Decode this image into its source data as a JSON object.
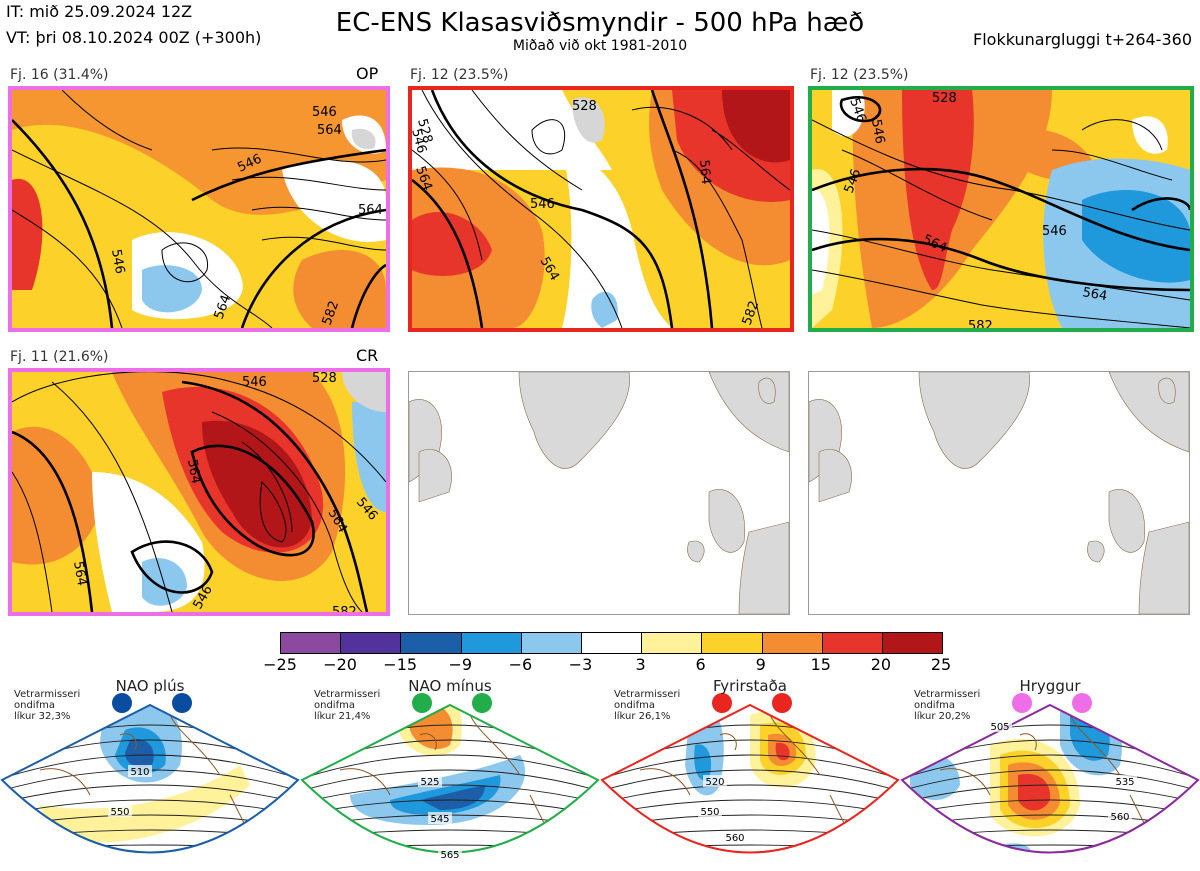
{
  "header": {
    "it_line": "IT: mið 25.09.2024 12Z",
    "vt_line": "VT: þri 08.10.2024 00Z  (+300h)",
    "title": "EC-ENS Klasasviðsmyndir - 500 hPa hæð",
    "subtitle": "Miðað við okt 1981-2010",
    "window": "Flokkunargluggi t+264-360"
  },
  "panels": [
    {
      "label": "Fj. 16 (31.4%)",
      "tag": "OP",
      "frame_color": "#ee6ee8",
      "contours": [
        "546",
        "546",
        "546",
        "564",
        "564",
        "564",
        "582"
      ]
    },
    {
      "label": "Fj. 12 (23.5%)",
      "tag": "",
      "frame_color": "#e8251e",
      "contours": [
        "528",
        "528",
        "546",
        "546",
        "564",
        "564",
        "564",
        "582"
      ]
    },
    {
      "label": "Fj. 12 (23.5%)",
      "tag": "",
      "frame_color": "#21ad4a",
      "contours": [
        "546",
        "528",
        "546",
        "546",
        "564",
        "564",
        "546",
        "582"
      ]
    },
    {
      "label": "Fj. 11 (21.6%)",
      "tag": "CR",
      "frame_color": "#ee6ee8",
      "contours": [
        "546",
        "528",
        "564",
        "564",
        "546",
        "546",
        "564",
        "582"
      ]
    }
  ],
  "colorbar": {
    "colors": [
      "#8b4aa0",
      "#52339b",
      "#1c5fa8",
      "#1f98dc",
      "#8cc7ee",
      "#ffffff",
      "#fff29a",
      "#fcd22a",
      "#f48c32",
      "#e8352b",
      "#b31618"
    ],
    "ticks": [
      "−25",
      "−20",
      "−15",
      "−9",
      "−6",
      "−3",
      "3",
      "6",
      "9",
      "15",
      "20",
      "25"
    ]
  },
  "regimes": [
    {
      "name": "NAO plús",
      "info": [
        "Vetrarmisseri",
        "ondifma",
        "líkur 32,3%"
      ],
      "color": "#1c5fa8",
      "dot_color": "#0a4da0",
      "contours": [
        "510",
        "550"
      ]
    },
    {
      "name": "NAO mínus",
      "info": [
        "Vetrarmisseri",
        "ondifma",
        "líkur 21,4%"
      ],
      "color": "#21ad4a",
      "dot_color": "#21ad4a",
      "contours": [
        "525",
        "545",
        "565"
      ]
    },
    {
      "name": "Fyrirstaða",
      "info": [
        "Vetrarmisseri",
        "ondifma",
        "líkur 26,1%"
      ],
      "color": "#e8251e",
      "dot_color": "#e8251e",
      "contours": [
        "520",
        "550",
        "560"
      ]
    },
    {
      "name": "Hryggur",
      "info": [
        "Vetrarmisseri",
        "ondifma",
        "líkur 20,2%"
      ],
      "color": "#8a2a9c",
      "dot_color": "#ee6ee8",
      "contours": [
        "505",
        "535",
        "560"
      ]
    }
  ]
}
